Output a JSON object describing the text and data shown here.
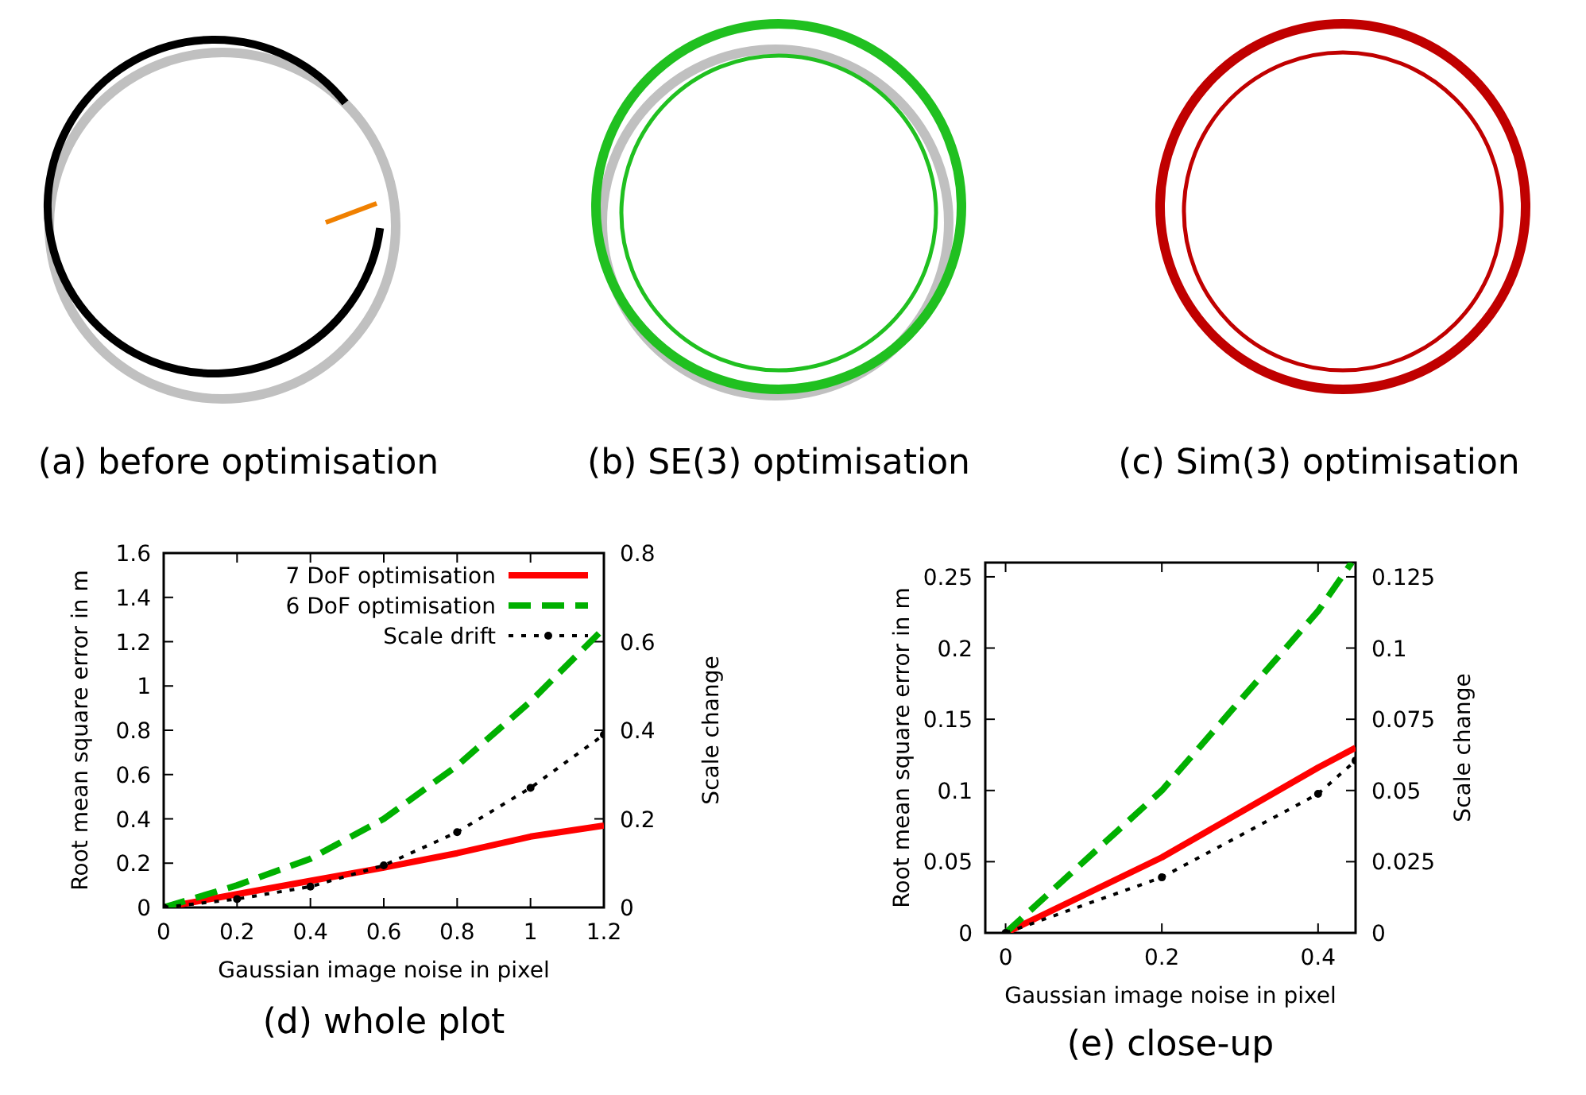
{
  "chart_data": [
    {
      "type": "other",
      "title": "(a) before optimisation"
    },
    {
      "type": "other",
      "title": "(b) SE(3) optimisation"
    },
    {
      "type": "other",
      "title": "(c) Sim(3) optimisation"
    },
    {
      "type": "line",
      "title": "(d) whole plot",
      "xlabel": "Gaussian image noise in pixel",
      "ylabel": "Root mean square error in m",
      "y2label": "Scale change",
      "xlim": [
        0,
        1.2
      ],
      "xticks": [
        0,
        0.2,
        0.4,
        0.6,
        0.8,
        1,
        1.2
      ],
      "ylim": [
        0,
        1.6
      ],
      "yticks": [
        0,
        0.2,
        0.4,
        0.6,
        0.8,
        1,
        1.2,
        1.4,
        1.6
      ],
      "y2lim": [
        0,
        0.8
      ],
      "y2ticks": [
        0,
        0.2,
        0.4,
        0.6,
        0.8
      ],
      "legend": "top right",
      "series": [
        {
          "name": "7 DoF optimisation",
          "color": "#ff0000",
          "line_style": "solid",
          "x": [
            0,
            0.2,
            0.4,
            0.6,
            0.8,
            1,
            1.2
          ],
          "values": [
            0,
            0.06,
            0.12,
            0.18,
            0.245,
            0.32,
            0.37
          ]
        },
        {
          "name": "6 DoF optimisation",
          "color": "#00b000",
          "line_style": "dashed",
          "x": [
            0,
            0.2,
            0.4,
            0.6,
            0.8,
            1,
            1.2
          ],
          "values": [
            0,
            0.1,
            0.22,
            0.4,
            0.64,
            0.93,
            1.26
          ]
        },
        {
          "name": "Scale drift",
          "color": "#000000",
          "line_style": "dotted",
          "marker": "circle",
          "axis": "y2",
          "x": [
            0,
            0.2,
            0.4,
            0.6,
            0.8,
            1,
            1.2
          ],
          "values": [
            0,
            0.019,
            0.047,
            0.095,
            0.17,
            0.27,
            0.39
          ]
        }
      ]
    },
    {
      "type": "line",
      "title": "(e) close-up",
      "xlabel": "Gaussian image noise in pixel",
      "ylabel": "Root mean square error in m",
      "y2label": "Scale change",
      "xlim": [
        -0.026,
        0.448
      ],
      "xticks": [
        0,
        0.2,
        0.4
      ],
      "ylim": [
        0,
        0.26
      ],
      "yticks": [
        0,
        0.05,
        0.1,
        0.15,
        0.2,
        0.25
      ],
      "y2lim": [
        0,
        0.13
      ],
      "y2ticks": [
        0,
        0.025,
        0.05,
        0.075,
        0.1,
        0.125
      ],
      "legend": false,
      "series": [
        {
          "color": "#ff0000",
          "line_style": "solid",
          "x": [
            0,
            0.2,
            0.4,
            0.448
          ],
          "values": [
            0,
            0.053,
            0.116,
            0.13
          ]
        },
        {
          "color": "#00b000",
          "line_style": "dashed",
          "x": [
            0,
            0.2,
            0.4,
            0.443
          ],
          "values": [
            0,
            0.1,
            0.226,
            0.26
          ]
        },
        {
          "color": "#000000",
          "line_style": "dotted",
          "marker": "circle",
          "axis": "y2",
          "x": [
            0,
            0.2,
            0.4,
            0.448
          ],
          "values": [
            0,
            0.0195,
            0.0488,
            0.0605
          ]
        }
      ]
    }
  ]
}
